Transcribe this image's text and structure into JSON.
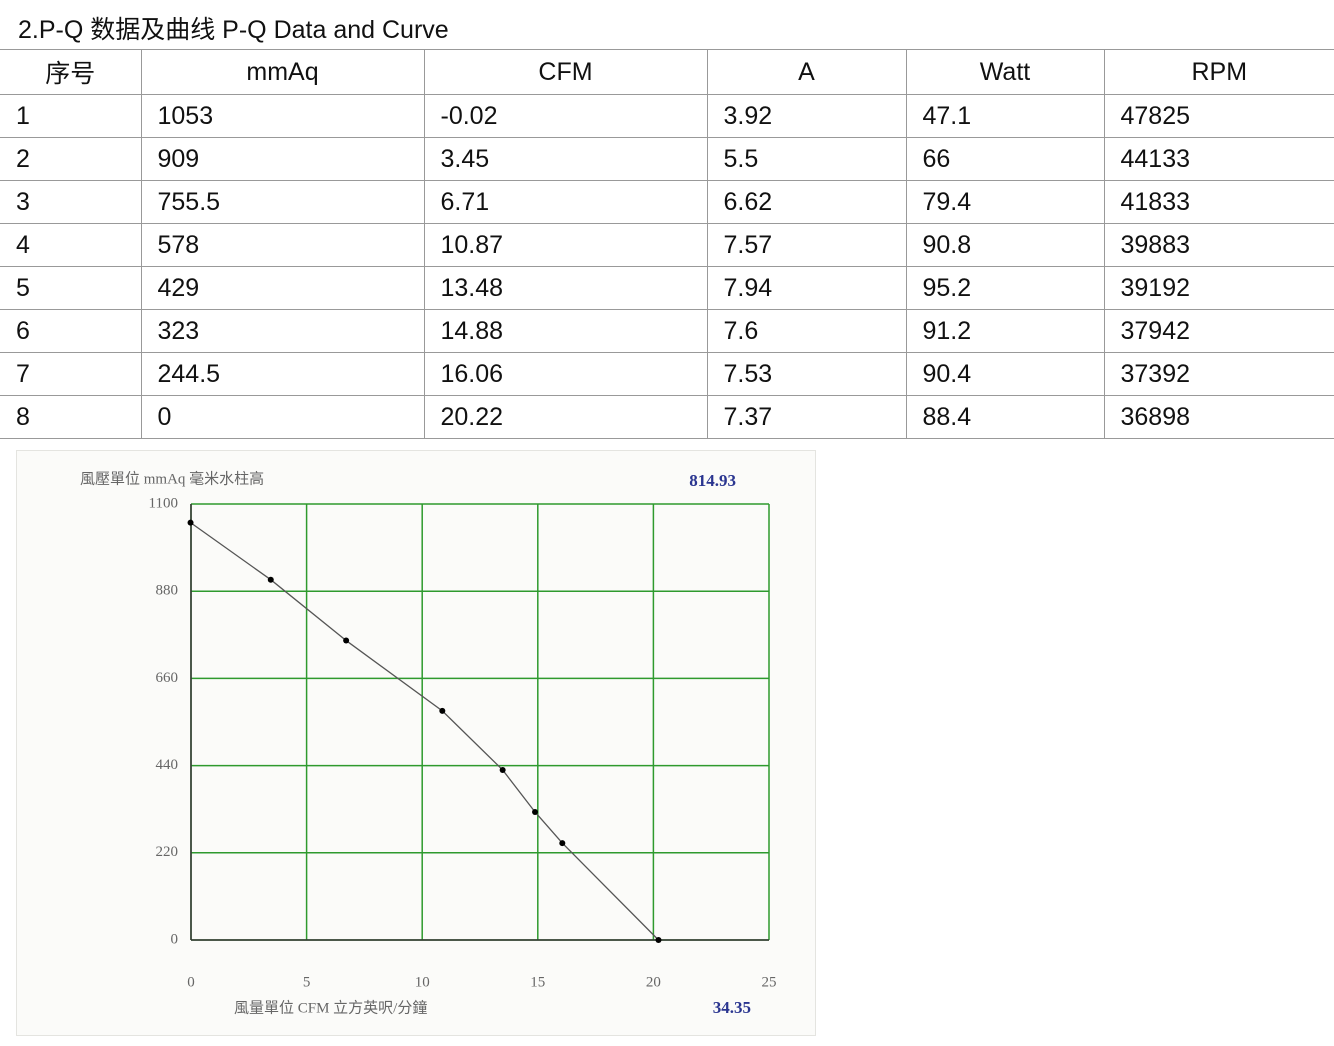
{
  "header": {
    "title": "2.P-Q 数据及曲线  P-Q Data and Curve"
  },
  "table": {
    "headers": [
      "序号",
      "mmAq",
      "CFM",
      "A",
      "Watt",
      "RPM"
    ],
    "rows": [
      [
        "1",
        "1053",
        "-0.02",
        "3.92",
        "47.1",
        "47825"
      ],
      [
        "2",
        "909",
        "3.45",
        "5.5",
        "66",
        "44133"
      ],
      [
        "3",
        "755.5",
        "6.71",
        "6.62",
        "79.4",
        "41833"
      ],
      [
        "4",
        "578",
        "10.87",
        "7.57",
        "90.8",
        "39883"
      ],
      [
        "5",
        "429",
        "13.48",
        "7.94",
        "95.2",
        "39192"
      ],
      [
        "6",
        "323",
        "14.88",
        "7.6",
        "91.2",
        "37942"
      ],
      [
        "7",
        "244.5",
        "16.06",
        "7.53",
        "90.4",
        "37392"
      ],
      [
        "8",
        "0",
        "20.22",
        "7.37",
        "88.4",
        "36898"
      ]
    ]
  },
  "chart_data": {
    "type": "line",
    "ylabel": "風壓單位  mmAq 毫米水柱高",
    "xlabel": "風量單位   CFM 立方英呎/分鐘",
    "annotations": [
      "814.93",
      "34.35"
    ],
    "x": [
      -0.02,
      3.45,
      6.71,
      10.87,
      13.48,
      14.88,
      16.06,
      20.22
    ],
    "values": [
      1053,
      909,
      755.5,
      578,
      429,
      323,
      244.5,
      0
    ],
    "color": "#555555",
    "marker_color": "#000000",
    "xlim": [
      0,
      25
    ],
    "ylim": [
      0,
      1100
    ],
    "xticks": [
      0,
      5,
      10,
      15,
      20,
      25
    ],
    "yticks": [
      0,
      220,
      440,
      660,
      880,
      1100
    ],
    "grid": true,
    "grid_color": "#2e9a2e"
  }
}
